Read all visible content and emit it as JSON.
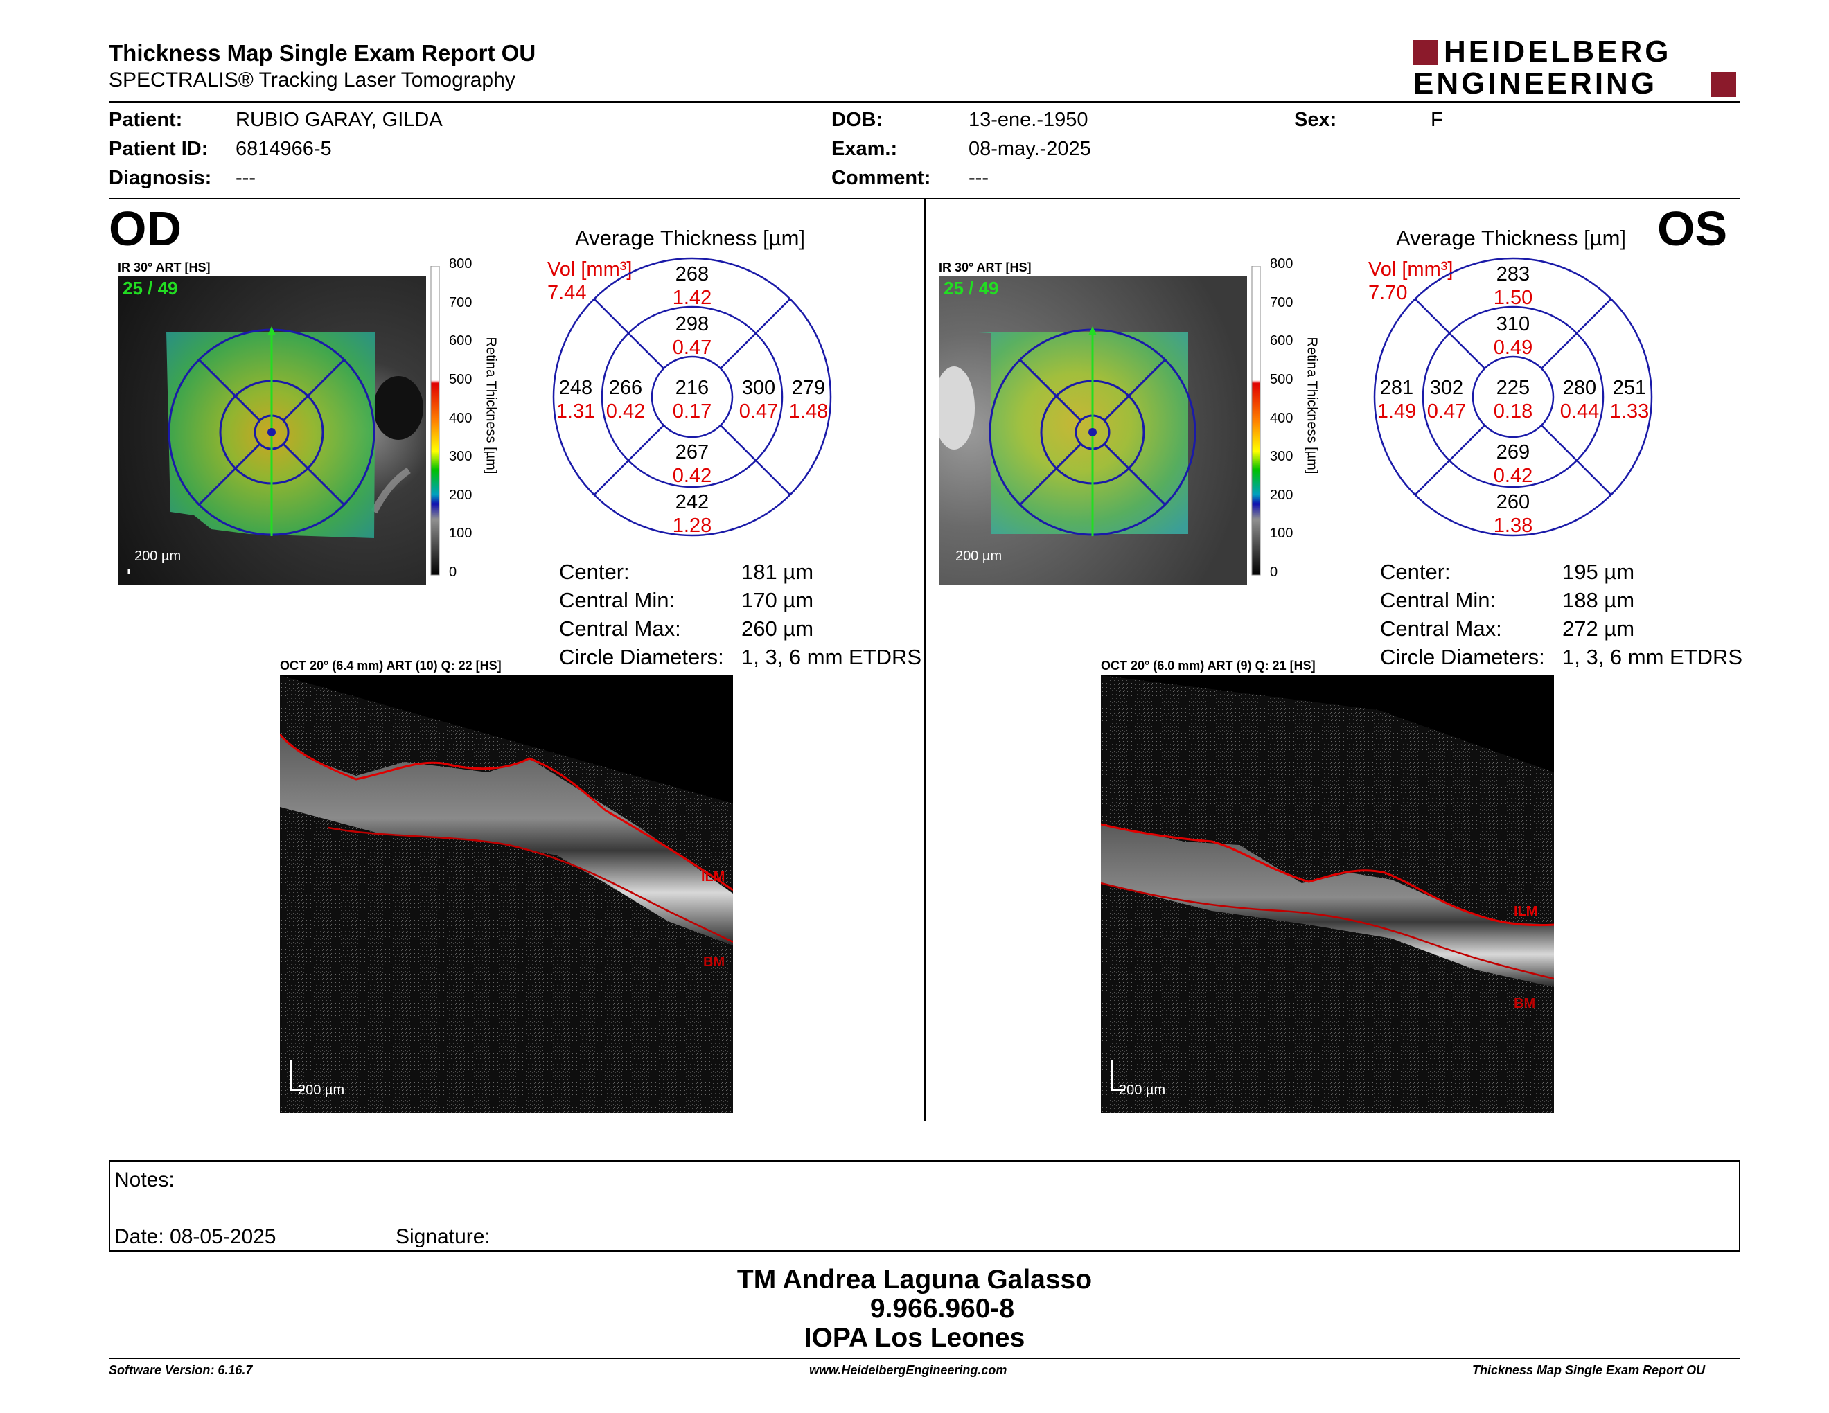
{
  "header": {
    "title": "Thickness Map Single Exam Report OU",
    "subtitle": "SPECTRALIS® Tracking Laser Tomography",
    "logo_line1": "HEIDELBERG",
    "logo_line2": "ENGINEERING",
    "brand_color": "#8b1a2b"
  },
  "patient": {
    "patient_label": "Patient:",
    "patient_value": "RUBIO GARAY, GILDA",
    "id_label": "Patient ID:",
    "id_value": "6814966-5",
    "diag_label": "Diagnosis:",
    "diag_value": "---",
    "dob_label": "DOB:",
    "dob_value": "13-ene.-1950",
    "exam_label": "Exam.:",
    "exam_value": "08-may.-2025",
    "comment_label": "Comment:",
    "comment_value": "---",
    "sex_label": "Sex:",
    "sex_value": "F"
  },
  "od": {
    "eye": "OD",
    "ir_label": "IR 30° ART [HS]",
    "frame": "25 / 49",
    "scale_bar": "200 µm",
    "colorbar_ticks": [
      "800",
      "700",
      "600",
      "500",
      "400",
      "300",
      "200",
      "100",
      "0"
    ],
    "colorbar_title": "Retina  Thickness [µm]",
    "avg_title": "Average Thickness [µm]",
    "vol_label": "Vol [mm³]",
    "vol_total": "7.44",
    "grid": {
      "sup_outer": [
        "268",
        "1.42"
      ],
      "sup_inner": [
        "298",
        "0.47"
      ],
      "temp_outer": [
        "248",
        "1.31"
      ],
      "temp_inner": [
        "266",
        "0.42"
      ],
      "center": [
        "216",
        "0.17"
      ],
      "nas_inner": [
        "300",
        "0.47"
      ],
      "nas_outer": [
        "279",
        "1.48"
      ],
      "inf_inner": [
        "267",
        "0.42"
      ],
      "inf_outer": [
        "242",
        "1.28"
      ]
    },
    "stats": {
      "center_label": "Center:",
      "center_value": "181 µm",
      "min_label": "Central Min:",
      "min_value": "170 µm",
      "max_label": "Central Max:",
      "max_value": "260 µm",
      "diam_label": "Circle Diameters:",
      "diam_value": "1, 3, 6 mm ETDRS"
    },
    "oct_label": "OCT 20° (6.4 mm) ART (10) Q: 22 [HS]",
    "oct_scale": "200 µm",
    "ilm": "ILM",
    "bm": "BM"
  },
  "os": {
    "eye": "OS",
    "ir_label": "IR 30° ART [HS]",
    "frame": "25 / 49",
    "scale_bar": "200 µm",
    "colorbar_ticks": [
      "800",
      "700",
      "600",
      "500",
      "400",
      "300",
      "200",
      "100",
      "0"
    ],
    "colorbar_title": "Retina  Thickness [µm]",
    "avg_title": "Average Thickness [µm]",
    "vol_label": "Vol [mm³]",
    "vol_total": "7.70",
    "grid": {
      "sup_outer": [
        "283",
        "1.50"
      ],
      "sup_inner": [
        "310",
        "0.49"
      ],
      "temp_outer": [
        "281",
        "1.49"
      ],
      "temp_inner": [
        "302",
        "0.47"
      ],
      "center": [
        "225",
        "0.18"
      ],
      "nas_inner": [
        "280",
        "0.44"
      ],
      "nas_outer": [
        "251",
        "1.33"
      ],
      "inf_inner": [
        "269",
        "0.42"
      ],
      "inf_outer": [
        "260",
        "1.38"
      ]
    },
    "stats": {
      "center_label": "Center:",
      "center_value": "195 µm",
      "min_label": "Central Min:",
      "min_value": "188 µm",
      "max_label": "Central Max:",
      "max_value": "272 µm",
      "diam_label": "Circle Diameters:",
      "diam_value": "1, 3, 6 mm ETDRS"
    },
    "oct_label": "OCT 20° (6.0 mm) ART (9) Q: 21 [HS]",
    "oct_scale": "200 µm",
    "ilm": "ILM",
    "bm": "BM"
  },
  "notes": {
    "notes_label": "Notes:",
    "date_label": "Date: 08-05-2025",
    "signature_label": "Signature:"
  },
  "signer": {
    "line1": "TM Andrea Laguna Galasso",
    "line2": "9.966.960-8",
    "line3": "IOPA Los Leones"
  },
  "footer": {
    "version": "Software Version: 6.16.7",
    "website": "www.HeidelbergEngineering.com",
    "report": "Thickness Map Single Exam Report OU"
  },
  "colors": {
    "value_red": "#e00000",
    "grid_blue": "#1a1aa8",
    "frame_green": "#22dd22"
  }
}
